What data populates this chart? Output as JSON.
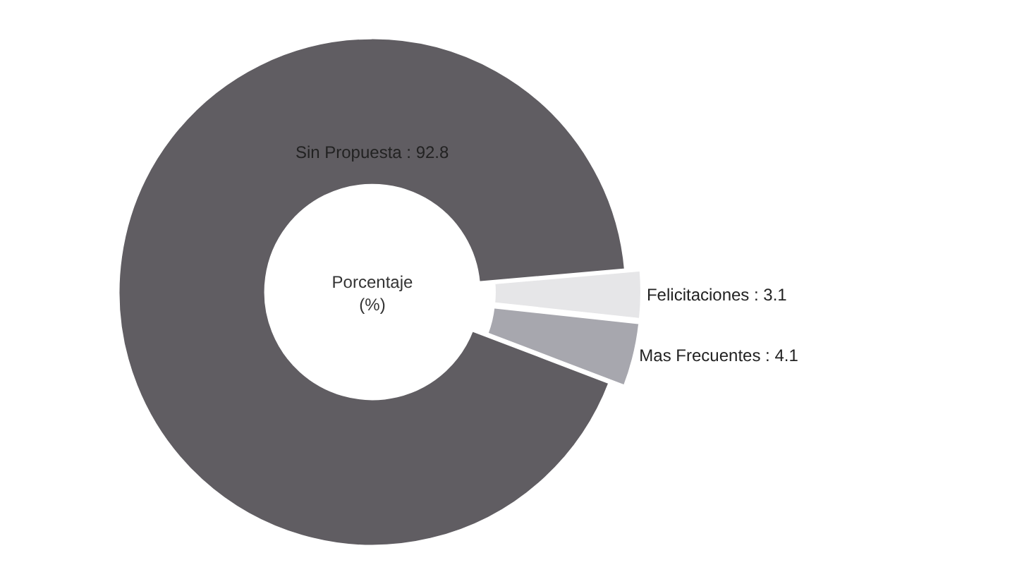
{
  "chart_data": {
    "type": "donut",
    "title": "Porcentaje\n(%)",
    "categories": [
      "Felicitaciones : 3.1",
      "Mas Frecuentes : 4.1",
      "Sin Propuesta : 92.8"
    ],
    "values": [
      3.1,
      4.1,
      92.8
    ],
    "colors": [
      "#e6e6e8",
      "#a7a7ae",
      "#605d62"
    ],
    "legend": false
  }
}
